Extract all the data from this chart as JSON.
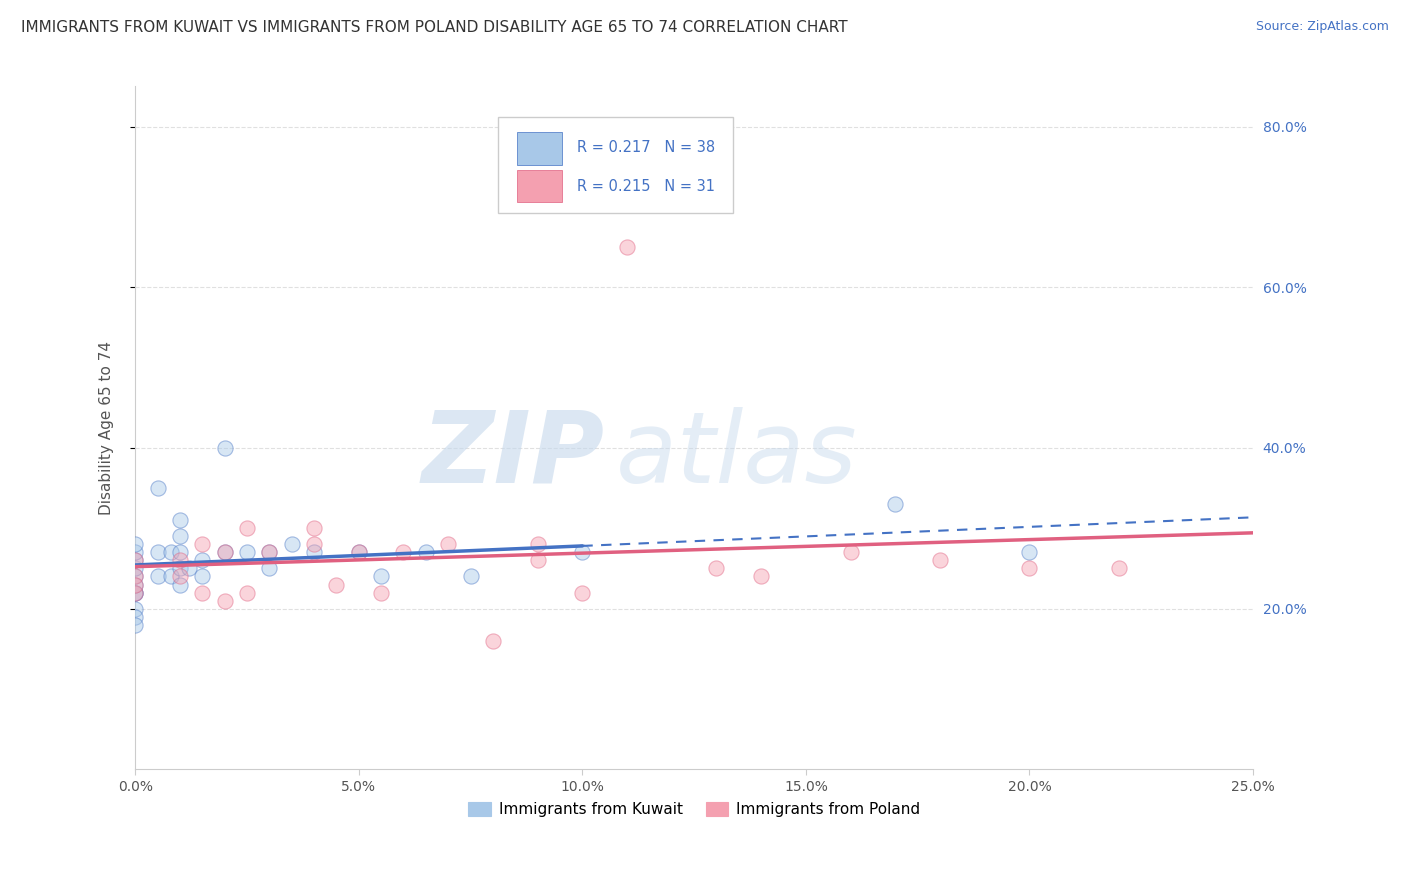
{
  "title": "IMMIGRANTS FROM KUWAIT VS IMMIGRANTS FROM POLAND DISABILITY AGE 65 TO 74 CORRELATION CHART",
  "source": "Source: ZipAtlas.com",
  "ylabel": "Disability Age 65 to 74",
  "kuwait_color": "#a8c8e8",
  "poland_color": "#f4a0b0",
  "kuwait_line_color": "#4472c4",
  "poland_line_color": "#e06080",
  "R_kuwait": 0.217,
  "N_kuwait": 38,
  "R_poland": 0.215,
  "N_poland": 31,
  "legend_label_kuwait": "Immigrants from Kuwait",
  "legend_label_poland": "Immigrants from Poland",
  "watermark_zip": "ZIP",
  "watermark_atlas": "atlas",
  "xlim": [
    0.0,
    0.25
  ],
  "ylim": [
    0.0,
    0.85
  ],
  "kuwait_x": [
    0.0,
    0.0,
    0.0,
    0.0,
    0.0,
    0.0,
    0.0,
    0.0,
    0.0,
    0.0,
    0.0,
    0.005,
    0.005,
    0.005,
    0.008,
    0.008,
    0.01,
    0.01,
    0.01,
    0.01,
    0.01,
    0.012,
    0.015,
    0.015,
    0.02,
    0.02,
    0.025,
    0.03,
    0.03,
    0.035,
    0.04,
    0.05,
    0.055,
    0.065,
    0.075,
    0.1,
    0.17,
    0.2
  ],
  "kuwait_y": [
    0.22,
    0.23,
    0.24,
    0.25,
    0.26,
    0.27,
    0.28,
    0.22,
    0.2,
    0.19,
    0.18,
    0.24,
    0.27,
    0.35,
    0.24,
    0.27,
    0.23,
    0.25,
    0.27,
    0.29,
    0.31,
    0.25,
    0.24,
    0.26,
    0.27,
    0.4,
    0.27,
    0.27,
    0.25,
    0.28,
    0.27,
    0.27,
    0.24,
    0.27,
    0.24,
    0.27,
    0.33,
    0.27
  ],
  "poland_x": [
    0.0,
    0.0,
    0.0,
    0.0,
    0.01,
    0.01,
    0.015,
    0.015,
    0.02,
    0.02,
    0.025,
    0.025,
    0.03,
    0.04,
    0.04,
    0.045,
    0.05,
    0.055,
    0.06,
    0.07,
    0.08,
    0.09,
    0.09,
    0.1,
    0.11,
    0.13,
    0.14,
    0.16,
    0.18,
    0.2,
    0.22
  ],
  "poland_y": [
    0.22,
    0.24,
    0.26,
    0.23,
    0.24,
    0.26,
    0.22,
    0.28,
    0.21,
    0.27,
    0.22,
    0.3,
    0.27,
    0.28,
    0.3,
    0.23,
    0.27,
    0.22,
    0.27,
    0.28,
    0.16,
    0.28,
    0.26,
    0.22,
    0.65,
    0.25,
    0.24,
    0.27,
    0.26,
    0.25,
    0.25
  ],
  "bg_color": "#ffffff",
  "grid_color": "#e0e0e0",
  "scatter_size": 120,
  "scatter_alpha": 0.45,
  "legend_text_color": "#4472c4",
  "legend_R_color": "#4472c4",
  "legend_box_edge": "#cccccc",
  "y_tick_positions": [
    0.2,
    0.4,
    0.6,
    0.8
  ],
  "y_tick_labels": [
    "20.0%",
    "40.0%",
    "60.0%",
    "80.0%"
  ],
  "x_tick_positions": [
    0.0,
    0.05,
    0.1,
    0.15,
    0.2,
    0.25
  ],
  "x_tick_labels": [
    "0.0%",
    "5.0%",
    "10.0%",
    "15.0%",
    "20.0%",
    "25.0%"
  ]
}
